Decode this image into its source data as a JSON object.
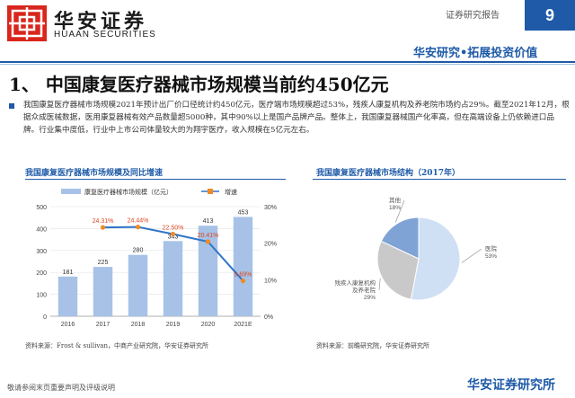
{
  "header": {
    "logo_cn": "华安证券",
    "logo_en": "HUAAN SECURITIES",
    "report_type": "证券研究报告",
    "page_number": "9",
    "slogan": "华安研究•拓展投资价值"
  },
  "page_title": "1、 中国康复医疗器械市场规模当前约450亿元",
  "paragraph": "我国康复医疗器械市场规模2021年预计出厂价口径统计约450亿元，医疗端市场规模超过53%，残疾人康复机构及养老院市场约占29%。截至2021年12月，根据众成医械数据，医用康复器械有效产品数量超5000种，其中90%以上是国产品牌产品。整体上，我国康复器械国产化率高，但在高端设备上仍依赖进口品牌。行业集中度低，行业中上市公司体量较大的为翔宇医疗，收入规模在5亿元左右。",
  "left_chart": {
    "title": "我国康复医疗器械市场规模及同比增速",
    "source": "资料来源：Frost & sullivan，中商产业研究院，华安证券研究所"
  },
  "right_chart": {
    "title": "我国康复医疗器械市场结构（2017年）",
    "source": "资料来源：前瞻研究院，华安证券研究所"
  },
  "footer": {
    "note": "敬请参阅末页重要声明及评级说明",
    "brand": "华安证券研究所"
  },
  "colors": {
    "brand_blue": "#1e5aa8",
    "bar_fill": "#a7c2e6",
    "growth_line": "#2f74c8",
    "growth_marker": "#f08a24",
    "growth_label": "#e0451f"
  },
  "chart_data": [
    {
      "type": "bar",
      "categories": [
        "2016",
        "2017",
        "2018",
        "2019",
        "2020",
        "2021E"
      ],
      "series": [
        {
          "name": "康复医疗器械市场规模（亿元）",
          "type": "bar",
          "axis": "left",
          "values": [
            181,
            225,
            280,
            343,
            413,
            453
          ]
        },
        {
          "name": "增速",
          "type": "line",
          "axis": "right",
          "values": [
            null,
            24.31,
            24.44,
            22.5,
            20.41,
            9.69
          ],
          "labels": [
            "",
            "24.31%",
            "24.44%",
            "22.50%",
            "20.41%",
            "9.69%"
          ]
        }
      ],
      "ylim_left": [
        0,
        500
      ],
      "yticks_left": [
        "0",
        "100",
        "200",
        "300",
        "400",
        "500"
      ],
      "ylim_right": [
        0,
        30
      ],
      "yticks_right": [
        "0%",
        "10%",
        "20%",
        "30%"
      ]
    },
    {
      "type": "pie",
      "slices": [
        {
          "label": "医院",
          "value": 53,
          "value_label": "53%",
          "color": "#cfe0f4"
        },
        {
          "label": "残疾人康复机构及养老院",
          "value": 29,
          "value_label": "29%",
          "color": "#c9c9c9"
        },
        {
          "label": "其他",
          "value": 18,
          "value_label": "18%",
          "color": "#7fa3d4"
        }
      ],
      "legend": "none"
    }
  ]
}
